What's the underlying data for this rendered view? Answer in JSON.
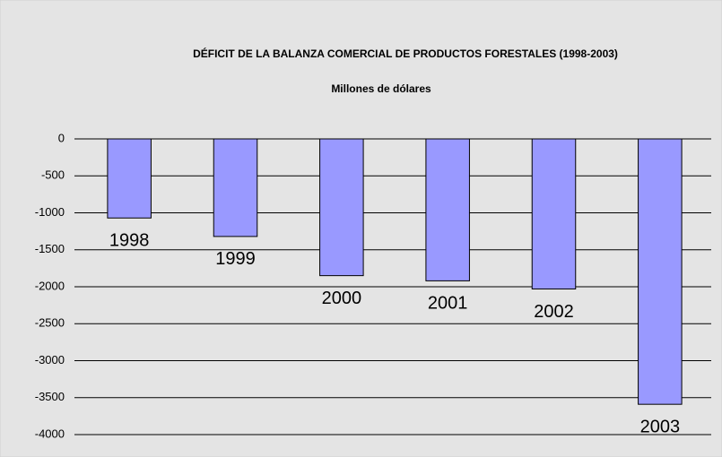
{
  "chart_data": {
    "type": "bar",
    "title": "DÉFICIT DE LA BALANZA COMERCIAL DE PRODUCTOS FORESTALES (1998-2003)",
    "subtitle": "Millones de dólares",
    "categories": [
      "1998",
      "1999",
      "2000",
      "2001",
      "2002",
      "2003"
    ],
    "values": [
      -1070,
      -1320,
      -1850,
      -1920,
      -2030,
      -3590
    ],
    "color": "#9999ff",
    "ylim": [
      -4000,
      0
    ],
    "yticks": [
      0,
      -500,
      -1000,
      -1500,
      -2000,
      -2500,
      -3000,
      -3500,
      -4000
    ],
    "grid": true
  }
}
